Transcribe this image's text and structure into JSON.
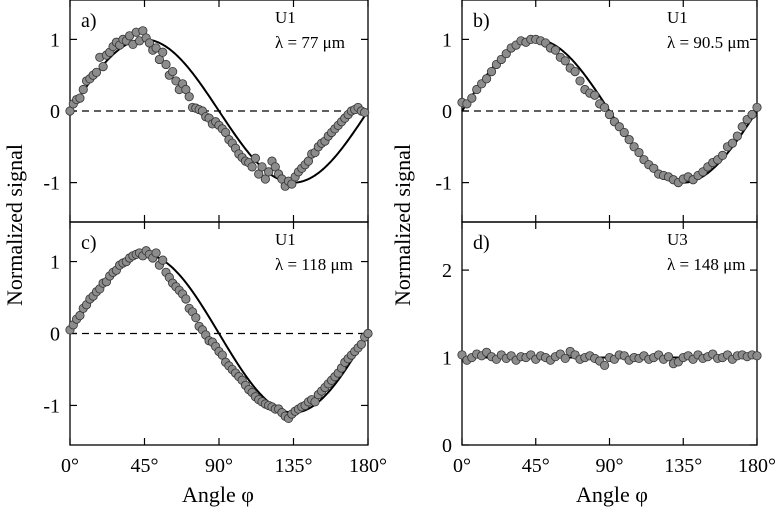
{
  "axis_labels": {
    "y_left": "Normalized signal",
    "y_right": "Normalized signal",
    "x_left": "Angle φ",
    "x_right": "Angle φ"
  },
  "colors": {
    "marker_fill": "#8c8c8c",
    "marker_edge": "#333333",
    "fit_line": "#000000",
    "axes": "#000000"
  },
  "chart_data": [
    {
      "type": "scatter",
      "panel": "a)",
      "sample": "U1",
      "wavelength": "λ = 77 μm",
      "xlim": [
        0,
        180
      ],
      "ylim": [
        -1.55,
        1.55
      ],
      "xticks": [
        0,
        45,
        90,
        135,
        180
      ],
      "xtick_labels": [
        "0°",
        "45°",
        "90°",
        "135°",
        "180°"
      ],
      "yticks": [
        -1,
        0,
        1
      ],
      "ytick_labels": [
        "-1",
        "0",
        "1"
      ],
      "reference_line": 0,
      "fit": {
        "kind": "sine",
        "amplitude": 1.0,
        "offset": 0,
        "period_deg": 180
      },
      "x": [
        0,
        2,
        4,
        6,
        8,
        10,
        12,
        14,
        16,
        18,
        20,
        22,
        24,
        26,
        28,
        30,
        32,
        34,
        36,
        38,
        40,
        42,
        44,
        46,
        48,
        50,
        52,
        54,
        56,
        58,
        60,
        62,
        64,
        66,
        68,
        70,
        72,
        74,
        76,
        78,
        80,
        82,
        84,
        86,
        88,
        90,
        92,
        94,
        96,
        98,
        100,
        102,
        104,
        106,
        108,
        110,
        112,
        114,
        116,
        118,
        120,
        122,
        124,
        126,
        128,
        130,
        132,
        134,
        136,
        138,
        140,
        142,
        144,
        146,
        148,
        150,
        152,
        154,
        156,
        158,
        160,
        162,
        164,
        166,
        168,
        170,
        172,
        174,
        176,
        178
      ],
      "y": [
        0.0,
        0.1,
        0.16,
        0.18,
        0.3,
        0.42,
        0.45,
        0.5,
        0.54,
        0.75,
        0.62,
        0.78,
        0.82,
        0.9,
        0.96,
        0.92,
        1.0,
        0.98,
        1.05,
        0.93,
        1.1,
        0.98,
        1.12,
        1.02,
        0.95,
        0.85,
        0.88,
        0.72,
        0.82,
        0.65,
        0.5,
        0.55,
        0.42,
        0.3,
        0.38,
        0.3,
        0.2,
        0.05,
        0.04,
        0.02,
        0.0,
        -0.08,
        -0.1,
        -0.18,
        -0.15,
        -0.2,
        -0.25,
        -0.3,
        -0.4,
        -0.45,
        -0.52,
        -0.6,
        -0.65,
        -0.7,
        -0.72,
        -0.78,
        -0.66,
        -0.88,
        -0.78,
        -0.95,
        -0.85,
        -0.7,
        -0.78,
        -0.88,
        -0.95,
        -1.05,
        -0.98,
        -1.02,
        -0.92,
        -0.85,
        -0.8,
        -0.75,
        -0.7,
        -0.6,
        -0.58,
        -0.5,
        -0.45,
        -0.42,
        -0.35,
        -0.3,
        -0.25,
        -0.2,
        -0.15,
        -0.1,
        -0.05,
        0.0,
        0.02,
        0.05,
        0.0,
        -0.02
      ]
    },
    {
      "type": "scatter",
      "panel": "b)",
      "sample": "U1",
      "wavelength": "λ = 90.5 μm",
      "xlim": [
        0,
        180
      ],
      "ylim": [
        -1.55,
        1.55
      ],
      "xticks": [
        0,
        45,
        90,
        135,
        180
      ],
      "xtick_labels": [
        "0°",
        "45°",
        "90°",
        "135°",
        "180°"
      ],
      "yticks": [
        -1,
        0,
        1
      ],
      "ytick_labels": [
        "-1",
        "0",
        "1"
      ],
      "reference_line": 0,
      "fit": {
        "kind": "sine",
        "amplitude": 1.0,
        "offset": 0,
        "period_deg": 180
      },
      "x": [
        0,
        3,
        6,
        9,
        12,
        15,
        18,
        21,
        24,
        27,
        30,
        33,
        36,
        39,
        42,
        45,
        48,
        51,
        54,
        57,
        60,
        63,
        66,
        69,
        72,
        75,
        78,
        81,
        84,
        87,
        90,
        93,
        96,
        99,
        102,
        105,
        108,
        111,
        114,
        117,
        120,
        123,
        126,
        129,
        132,
        135,
        138,
        141,
        144,
        147,
        150,
        153,
        156,
        159,
        162,
        165,
        168,
        171,
        174,
        177,
        180
      ],
      "y": [
        0.12,
        0.1,
        0.18,
        0.3,
        0.38,
        0.45,
        0.55,
        0.65,
        0.72,
        0.8,
        0.88,
        0.92,
        0.98,
        0.96,
        1.0,
        1.0,
        0.98,
        0.95,
        0.88,
        0.85,
        0.75,
        0.7,
        0.6,
        0.55,
        0.42,
        0.3,
        0.25,
        0.22,
        0.1,
        0.05,
        -0.05,
        -0.15,
        -0.22,
        -0.3,
        -0.4,
        -0.5,
        -0.58,
        -0.68,
        -0.75,
        -0.8,
        -0.88,
        -0.9,
        -0.92,
        -0.96,
        -1.0,
        -0.95,
        -0.92,
        -0.96,
        -0.9,
        -0.85,
        -0.78,
        -0.72,
        -0.68,
        -0.62,
        -0.5,
        -0.45,
        -0.35,
        -0.22,
        -0.12,
        -0.05,
        0.05
      ]
    },
    {
      "type": "scatter",
      "panel": "c)",
      "sample": "U1",
      "wavelength": "λ = 118 μm",
      "xlim": [
        0,
        180
      ],
      "ylim": [
        -1.55,
        1.55
      ],
      "xticks": [
        0,
        45,
        90,
        135,
        180
      ],
      "xtick_labels": [
        "0°",
        "45°",
        "90°",
        "135°",
        "180°"
      ],
      "yticks": [
        -1,
        0,
        1
      ],
      "ytick_labels": [
        "-1",
        "0",
        "1"
      ],
      "reference_line": 0,
      "fit": {
        "kind": "sine",
        "amplitude": 1.1,
        "offset": 0,
        "period_deg": 180
      },
      "x": [
        0,
        2,
        4,
        6,
        8,
        10,
        12,
        14,
        16,
        18,
        20,
        22,
        24,
        26,
        28,
        30,
        32,
        34,
        36,
        38,
        40,
        42,
        44,
        46,
        48,
        50,
        52,
        54,
        56,
        58,
        60,
        62,
        64,
        66,
        68,
        70,
        72,
        74,
        76,
        78,
        80,
        82,
        84,
        86,
        88,
        90,
        92,
        94,
        96,
        98,
        100,
        102,
        104,
        106,
        108,
        110,
        112,
        114,
        116,
        118,
        120,
        122,
        124,
        126,
        128,
        130,
        132,
        134,
        136,
        138,
        140,
        142,
        144,
        146,
        148,
        150,
        152,
        154,
        156,
        158,
        160,
        162,
        164,
        166,
        168,
        170,
        172,
        174,
        176,
        178,
        180
      ],
      "y": [
        0.05,
        0.12,
        0.2,
        0.25,
        0.35,
        0.4,
        0.48,
        0.52,
        0.58,
        0.62,
        0.7,
        0.72,
        0.8,
        0.85,
        0.88,
        0.95,
        0.98,
        1.0,
        1.05,
        1.08,
        1.1,
        1.12,
        1.08,
        1.15,
        1.1,
        1.05,
        1.12,
        0.95,
        1.02,
        0.85,
        0.78,
        0.7,
        0.65,
        0.6,
        0.55,
        0.48,
        0.35,
        0.3,
        0.22,
        0.1,
        0.05,
        -0.02,
        -0.1,
        -0.12,
        -0.18,
        -0.25,
        -0.3,
        -0.4,
        -0.45,
        -0.5,
        -0.55,
        -0.6,
        -0.65,
        -0.72,
        -0.78,
        -0.82,
        -0.88,
        -0.92,
        -0.95,
        -0.98,
        -1.0,
        -1.02,
        -1.05,
        -1.05,
        -1.1,
        -1.15,
        -1.18,
        -1.12,
        -1.08,
        -1.05,
        -1.02,
        -1.0,
        -0.95,
        -0.92,
        -0.95,
        -0.85,
        -0.8,
        -0.75,
        -0.7,
        -0.65,
        -0.6,
        -0.55,
        -0.48,
        -0.4,
        -0.35,
        -0.3,
        -0.25,
        -0.2,
        -0.15,
        -0.05,
        0.0
      ]
    },
    {
      "type": "scatter",
      "panel": "d)",
      "sample": "U3",
      "wavelength": "λ = 148 μm",
      "xlim": [
        0,
        180
      ],
      "ylim": [
        0,
        2.55
      ],
      "xticks": [
        0,
        45,
        90,
        135,
        180
      ],
      "xtick_labels": [
        "0°",
        "45°",
        "90°",
        "135°",
        "180°"
      ],
      "yticks": [
        0,
        1,
        2
      ],
      "ytick_labels": [
        "0",
        "1",
        "2"
      ],
      "reference_line": null,
      "fit": {
        "kind": "constant",
        "value": 1.0
      },
      "x": [
        0,
        3,
        6,
        9,
        12,
        15,
        18,
        21,
        24,
        27,
        30,
        33,
        36,
        39,
        42,
        45,
        48,
        51,
        54,
        57,
        60,
        63,
        66,
        69,
        72,
        75,
        78,
        81,
        84,
        87,
        90,
        93,
        96,
        99,
        102,
        105,
        108,
        111,
        114,
        117,
        120,
        123,
        126,
        129,
        132,
        135,
        138,
        141,
        144,
        147,
        150,
        153,
        156,
        159,
        162,
        165,
        168,
        171,
        174,
        177,
        180
      ],
      "y": [
        1.03,
        0.97,
        1.0,
        1.04,
        1.02,
        1.06,
        1.01,
        0.98,
        1.03,
        0.99,
        1.02,
        0.97,
        1.01,
        1.0,
        1.03,
        0.98,
        1.02,
        1.0,
        0.97,
        1.01,
        1.04,
        0.99,
        1.07,
        1.03,
        0.98,
        1.0,
        1.02,
        0.99,
        0.96,
        0.91,
        1.0,
        0.98,
        1.03,
        1.02,
        0.97,
        1.0,
        0.99,
        1.02,
        0.98,
        1.0,
        1.03,
        0.98,
        1.01,
        0.93,
        0.95,
        1.0,
        1.02,
        0.98,
        1.03,
        0.99,
        1.01,
        1.04,
        0.99,
        1.0,
        1.03,
        0.98,
        1.02,
        1.03,
        1.01,
        1.03,
        1.02
      ]
    }
  ]
}
